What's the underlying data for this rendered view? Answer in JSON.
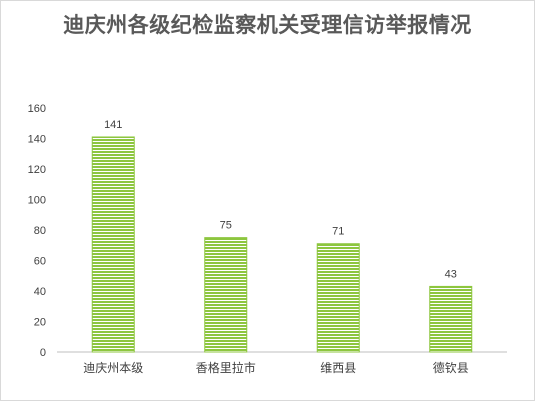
{
  "chart_data": {
    "type": "bar",
    "title": "迪庆州各级纪检监察机关受理信访举报情况",
    "categories": [
      "迪庆州本级",
      "香格里拉市",
      "维西县",
      "德钦县"
    ],
    "values": [
      141,
      75,
      71,
      43
    ],
    "data_labels": [
      "141",
      "75",
      "71",
      "43"
    ],
    "ylim": [
      0,
      160
    ],
    "yticks": [
      0,
      20,
      40,
      60,
      80,
      100,
      120,
      140,
      160
    ],
    "grid": false,
    "legend": "none",
    "bar_color": "#8dc63f",
    "bar_stripe_color": "#ffffff"
  }
}
